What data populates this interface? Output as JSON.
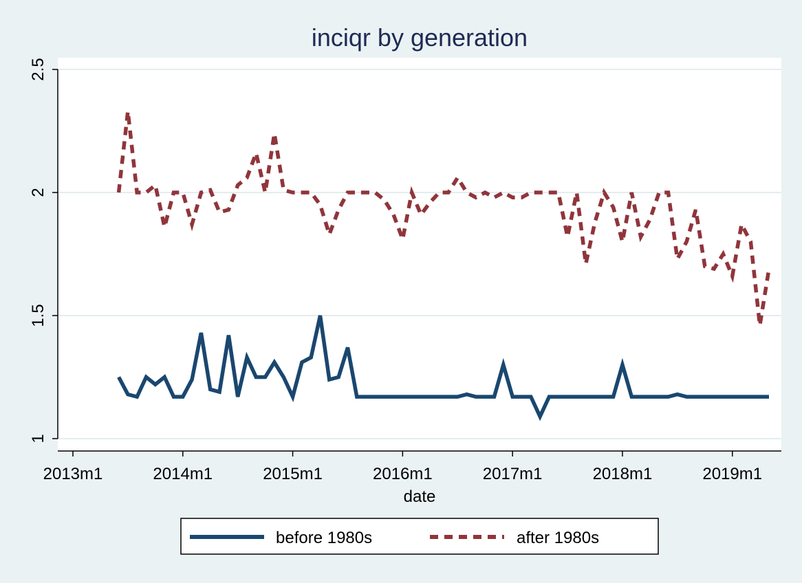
{
  "chart_data": {
    "type": "line",
    "title": "inciqr by generation",
    "xlabel": "date",
    "ylabel": "",
    "ylim": [
      0.95,
      2.55
    ],
    "xlim": [
      "2013m1",
      "2019m5"
    ],
    "yticks": [
      1,
      1.5,
      2,
      2.5
    ],
    "ytick_labels": [
      "1",
      "1.5",
      "2",
      "2.5"
    ],
    "xticks": [
      "2013m1",
      "2014m1",
      "2015m1",
      "2016m1",
      "2017m1",
      "2018m1",
      "2019m1"
    ],
    "grid": "horizontal",
    "legend_position": "bottom",
    "background_color": "#eaf2f3",
    "plot_color": "#ffffff",
    "x": [
      "2013m6",
      "2013m7",
      "2013m8",
      "2013m9",
      "2013m10",
      "2013m11",
      "2013m12",
      "2014m1",
      "2014m2",
      "2014m3",
      "2014m4",
      "2014m5",
      "2014m6",
      "2014m7",
      "2014m8",
      "2014m9",
      "2014m10",
      "2014m11",
      "2014m12",
      "2015m1",
      "2015m2",
      "2015m3",
      "2015m4",
      "2015m5",
      "2015m6",
      "2015m7",
      "2015m8",
      "2015m9",
      "2015m10",
      "2015m11",
      "2015m12",
      "2016m1",
      "2016m2",
      "2016m3",
      "2016m4",
      "2016m5",
      "2016m6",
      "2016m7",
      "2016m8",
      "2016m9",
      "2016m10",
      "2016m11",
      "2016m12",
      "2017m1",
      "2017m2",
      "2017m3",
      "2017m4",
      "2017m5",
      "2017m6",
      "2017m7",
      "2017m8",
      "2017m9",
      "2017m10",
      "2017m11",
      "2017m12",
      "2018m1",
      "2018m2",
      "2018m3",
      "2018m4",
      "2018m5",
      "2018m6",
      "2018m7",
      "2018m8",
      "2018m9",
      "2018m10",
      "2018m11",
      "2018m12",
      "2019m1",
      "2019m2",
      "2019m3",
      "2019m4",
      "2019m5"
    ],
    "series": [
      {
        "name": "before 1980s",
        "color": "#1a476f",
        "dash": "solid",
        "values": [
          1.25,
          1.18,
          1.17,
          1.25,
          1.22,
          1.25,
          1.17,
          1.17,
          1.24,
          1.43,
          1.2,
          1.19,
          1.42,
          1.17,
          1.33,
          1.25,
          1.25,
          1.31,
          1.25,
          1.17,
          1.31,
          1.33,
          1.5,
          1.24,
          1.25,
          1.37,
          1.17,
          1.17,
          1.17,
          1.17,
          1.17,
          1.17,
          1.17,
          1.17,
          1.17,
          1.17,
          1.17,
          1.17,
          1.18,
          1.17,
          1.17,
          1.17,
          1.3,
          1.17,
          1.17,
          1.17,
          1.09,
          1.17,
          1.17,
          1.17,
          1.17,
          1.17,
          1.17,
          1.17,
          1.17,
          1.3,
          1.17,
          1.17,
          1.17,
          1.17,
          1.17,
          1.18,
          1.17,
          1.17,
          1.17,
          1.17,
          1.17,
          1.17,
          1.17,
          1.17,
          1.17,
          1.17
        ]
      },
      {
        "name": "after 1980s",
        "color": "#90353b",
        "dash": "dashed",
        "values": [
          2.0,
          2.33,
          2.0,
          2.0,
          2.03,
          1.86,
          2.0,
          2.0,
          1.87,
          2.0,
          2.01,
          1.92,
          1.93,
          2.03,
          2.06,
          2.16,
          2.0,
          2.24,
          2.01,
          2.0,
          2.0,
          2.0,
          1.95,
          1.83,
          1.93,
          2.0,
          2.0,
          2.0,
          2.0,
          1.97,
          1.91,
          1.81,
          2.0,
          1.91,
          1.96,
          2.0,
          2.0,
          2.06,
          2.0,
          1.98,
          2.0,
          1.98,
          2.0,
          1.98,
          1.98,
          2.0,
          2.0,
          2.0,
          2.0,
          1.82,
          2.0,
          1.71,
          1.88,
          2.0,
          1.94,
          1.8,
          2.0,
          1.82,
          1.89,
          2.0,
          2.0,
          1.73,
          1.8,
          1.93,
          1.7,
          1.69,
          1.75,
          1.66,
          1.87,
          1.8,
          1.46,
          1.69
        ]
      }
    ]
  }
}
